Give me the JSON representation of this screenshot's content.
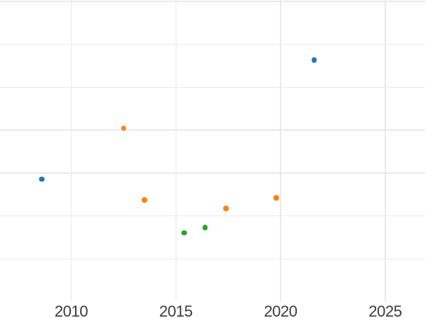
{
  "style": {
    "background": "#ffffff",
    "gridline_color": "#e9e9e9",
    "tick_label_color": "#3b3b3b"
  },
  "chart_data": {
    "type": "scatter",
    "title": "",
    "xlabel": "",
    "ylabel": "",
    "grid": true,
    "legend": false,
    "x_axis": {
      "tick_values": [
        2010,
        2015,
        2020,
        2025
      ],
      "tick_labels": [
        "2010",
        "2015",
        "2020",
        "2025"
      ],
      "range": [
        2006.6,
        2026.9
      ]
    },
    "y_axis": {
      "tick_labels": [],
      "gridline_values": [
        0,
        1,
        2,
        3,
        4,
        5,
        6
      ],
      "range": [
        -0.98,
        6.03
      ],
      "unit": "grid-units estimated from unlabeled gridlines"
    },
    "series": [
      {
        "name": "blue",
        "color": "#1f77b4",
        "points": [
          {
            "x": 2008.6,
            "y": 1.86
          },
          {
            "x": 2021.6,
            "y": 4.63
          }
        ]
      },
      {
        "name": "orange",
        "color": "#ff7f0e",
        "points": [
          {
            "x": 2012.5,
            "y": 3.04
          },
          {
            "x": 2013.5,
            "y": 1.37
          },
          {
            "x": 2017.4,
            "y": 1.18
          },
          {
            "x": 2019.8,
            "y": 1.42
          }
        ]
      },
      {
        "name": "green",
        "color": "#2ca02c",
        "points": [
          {
            "x": 2015.4,
            "y": 0.61
          },
          {
            "x": 2016.4,
            "y": 0.73
          }
        ]
      }
    ]
  }
}
